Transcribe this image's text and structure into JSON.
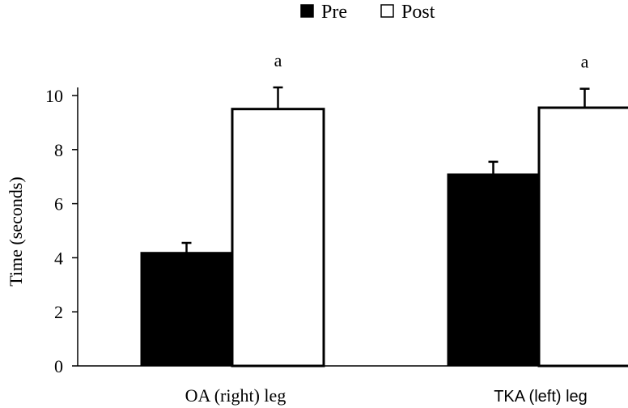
{
  "chart_data": {
    "type": "bar",
    "categories": [
      "OA (right) leg",
      "TKA (left) leg"
    ],
    "series": [
      {
        "name": "Pre",
        "values": [
          4.2,
          7.1
        ],
        "errors": [
          0.35,
          0.45
        ],
        "color": "#000000"
      },
      {
        "name": "Post",
        "values": [
          9.5,
          9.55
        ],
        "errors": [
          0.8,
          0.7
        ],
        "color": "#ffffff"
      }
    ],
    "annotations": [
      {
        "category": "OA (right) leg",
        "series": "Post",
        "text": "a"
      },
      {
        "category": "TKA (left) leg",
        "series": "Post",
        "text": "a"
      }
    ],
    "ylabel": "Time (seconds)",
    "xlabel": "",
    "ylim": [
      0,
      10
    ],
    "yticks": [
      "0",
      "2",
      "4",
      "6",
      "8",
      "10"
    ],
    "legend_position": "top-center",
    "grid": false
  }
}
